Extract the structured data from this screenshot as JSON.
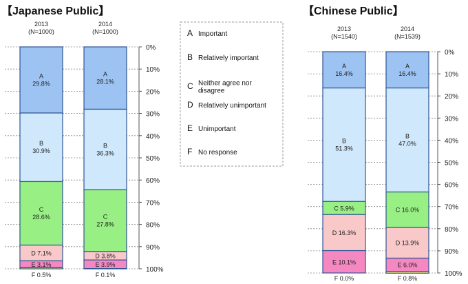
{
  "chart_data": [
    {
      "type": "stacked-bar",
      "title": "【Japanese Public】",
      "ylim": [
        0,
        100
      ],
      "y_ticks": [
        "0%",
        "10%",
        "20%",
        "30%",
        "40%",
        "50%",
        "60%",
        "70%",
        "80%",
        "90%",
        "100%"
      ],
      "categories": [
        {
          "year": "2013",
          "n": "(N=1000)"
        },
        {
          "year": "2014",
          "n": "(N=1000)"
        }
      ],
      "series": [
        {
          "key": "A",
          "values": [
            29.8,
            28.1
          ],
          "labels": [
            "A\n29.8%",
            "A\n28.1%"
          ]
        },
        {
          "key": "B",
          "values": [
            30.9,
            36.3
          ],
          "labels": [
            "B\n30.9%",
            "B\n36.3%"
          ]
        },
        {
          "key": "C",
          "values": [
            28.6,
            27.8
          ],
          "labels": [
            "C\n28.6%",
            "C\n27.8%"
          ]
        },
        {
          "key": "D",
          "values": [
            7.1,
            3.8
          ],
          "labels": [
            "D 7.1%",
            "D 3.8%"
          ]
        },
        {
          "key": "E",
          "values": [
            3.1,
            3.9
          ],
          "labels": [
            "E 3.1%",
            "E 3.9%"
          ]
        },
        {
          "key": "F",
          "values": [
            0.5,
            0.1
          ],
          "labels": [
            "F 0.5%",
            "F 0.1%"
          ]
        }
      ]
    },
    {
      "type": "stacked-bar",
      "title": "【Chinese Public】",
      "ylim": [
        0,
        100
      ],
      "y_ticks": [
        "0%",
        "10%",
        "20%",
        "30%",
        "40%",
        "50%",
        "60%",
        "70%",
        "80%",
        "90%",
        "100%"
      ],
      "categories": [
        {
          "year": "2013",
          "n": "(N=1540)"
        },
        {
          "year": "2014",
          "n": "(N=1539)"
        }
      ],
      "series": [
        {
          "key": "A",
          "values": [
            16.4,
            16.4
          ],
          "labels": [
            "A\n16.4%",
            "A\n16.4%"
          ]
        },
        {
          "key": "B",
          "values": [
            51.3,
            47.0
          ],
          "labels": [
            "B\n51.3%",
            "B\n47.0%"
          ]
        },
        {
          "key": "C",
          "values": [
            5.9,
            16.0
          ],
          "labels": [
            "C 5.9%",
            "C 16.0%"
          ]
        },
        {
          "key": "D",
          "values": [
            16.3,
            13.9
          ],
          "labels": [
            "D 16.3%",
            "D 13.9%"
          ]
        },
        {
          "key": "E",
          "values": [
            10.1,
            6.0
          ],
          "labels": [
            "E 10.1%",
            "E 6.0%"
          ]
        },
        {
          "key": "F",
          "values": [
            0.0,
            0.8
          ],
          "labels": [
            "F 0.0%",
            "F 0.8%"
          ]
        }
      ]
    }
  ],
  "legend": [
    {
      "key": "A",
      "text": "Important"
    },
    {
      "key": "B",
      "text": "Relatively important"
    },
    {
      "key": "C",
      "text": "Neither  agree nor\ndisagree"
    },
    {
      "key": "D",
      "text": "Relatively unimportant"
    },
    {
      "key": "E",
      "text": "Unimportant"
    },
    {
      "key": "F",
      "text": "No response"
    }
  ],
  "colors": {
    "A": "#9cc3f1",
    "B": "#cfe8fb",
    "C": "#98ef84",
    "D": "#f9c8c9",
    "E": "#f587c1",
    "F": "#f3e36c",
    "outline": "#2f5596"
  }
}
